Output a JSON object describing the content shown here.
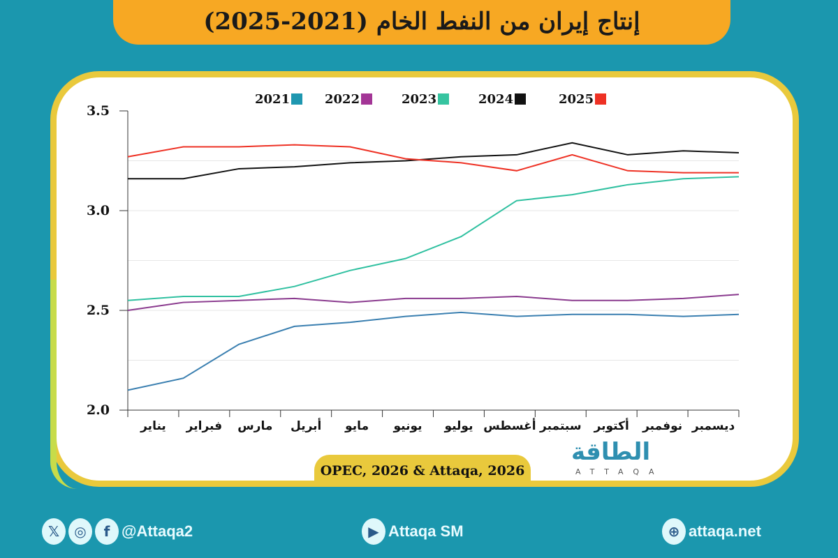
{
  "title": "إنتاج إيران من النفط الخام (2021-2025)",
  "source": "OPEC, 2026 & Attaqa, 2026",
  "logo": {
    "arabic": "الطاقة",
    "latin": "ATTAQA"
  },
  "footer": {
    "social": "@Attaqa2",
    "youtube": "Attaqa SM",
    "website": "attaqa.net",
    "icons": [
      "x-icon",
      "instagram-icon",
      "facebook-icon",
      "youtube-icon",
      "globe-icon"
    ]
  },
  "chart_data": {
    "type": "line",
    "categories": [
      "يناير",
      "فبراير",
      "مارس",
      "أبريل",
      "مايو",
      "يونيو",
      "يوليو",
      "أغسطس",
      "سبتمبر",
      "أكتوبر",
      "نوفمبر",
      "ديسمبر"
    ],
    "ylim": [
      2.0,
      3.5
    ],
    "yticks": [
      "2.0",
      "2.5",
      "3.0",
      "3.5"
    ],
    "grid": true,
    "legend_position": "top",
    "series": [
      {
        "name": "2021",
        "color": "#3a7fb0",
        "legend_color": "#1f97b0",
        "values": [
          2.1,
          2.16,
          2.33,
          2.42,
          2.44,
          2.47,
          2.49,
          2.47,
          2.48,
          2.48,
          2.47,
          2.48
        ]
      },
      {
        "name": "2022",
        "color": "#8a3a8e",
        "legend_color": "#a33596",
        "values": [
          2.5,
          2.54,
          2.55,
          2.56,
          2.54,
          2.56,
          2.56,
          2.57,
          2.55,
          2.55,
          2.56,
          2.58
        ]
      },
      {
        "name": "2023",
        "color": "#2fc0a0",
        "legend_color": "#36c4a0",
        "values": [
          2.55,
          2.57,
          2.57,
          2.62,
          2.7,
          2.76,
          2.87,
          3.05,
          3.08,
          3.13,
          3.16,
          3.17
        ]
      },
      {
        "name": "2024",
        "color": "#111111",
        "legend_color": "#111111",
        "values": [
          3.16,
          3.16,
          3.21,
          3.22,
          3.24,
          3.25,
          3.27,
          3.28,
          3.34,
          3.28,
          3.3,
          3.29
        ]
      },
      {
        "name": "2025",
        "color": "#ee3124",
        "legend_color": "#ee3124",
        "values": [
          3.27,
          3.32,
          3.32,
          3.33,
          3.32,
          3.26,
          3.24,
          3.2,
          3.28,
          3.2,
          3.19,
          3.19
        ]
      }
    ]
  }
}
